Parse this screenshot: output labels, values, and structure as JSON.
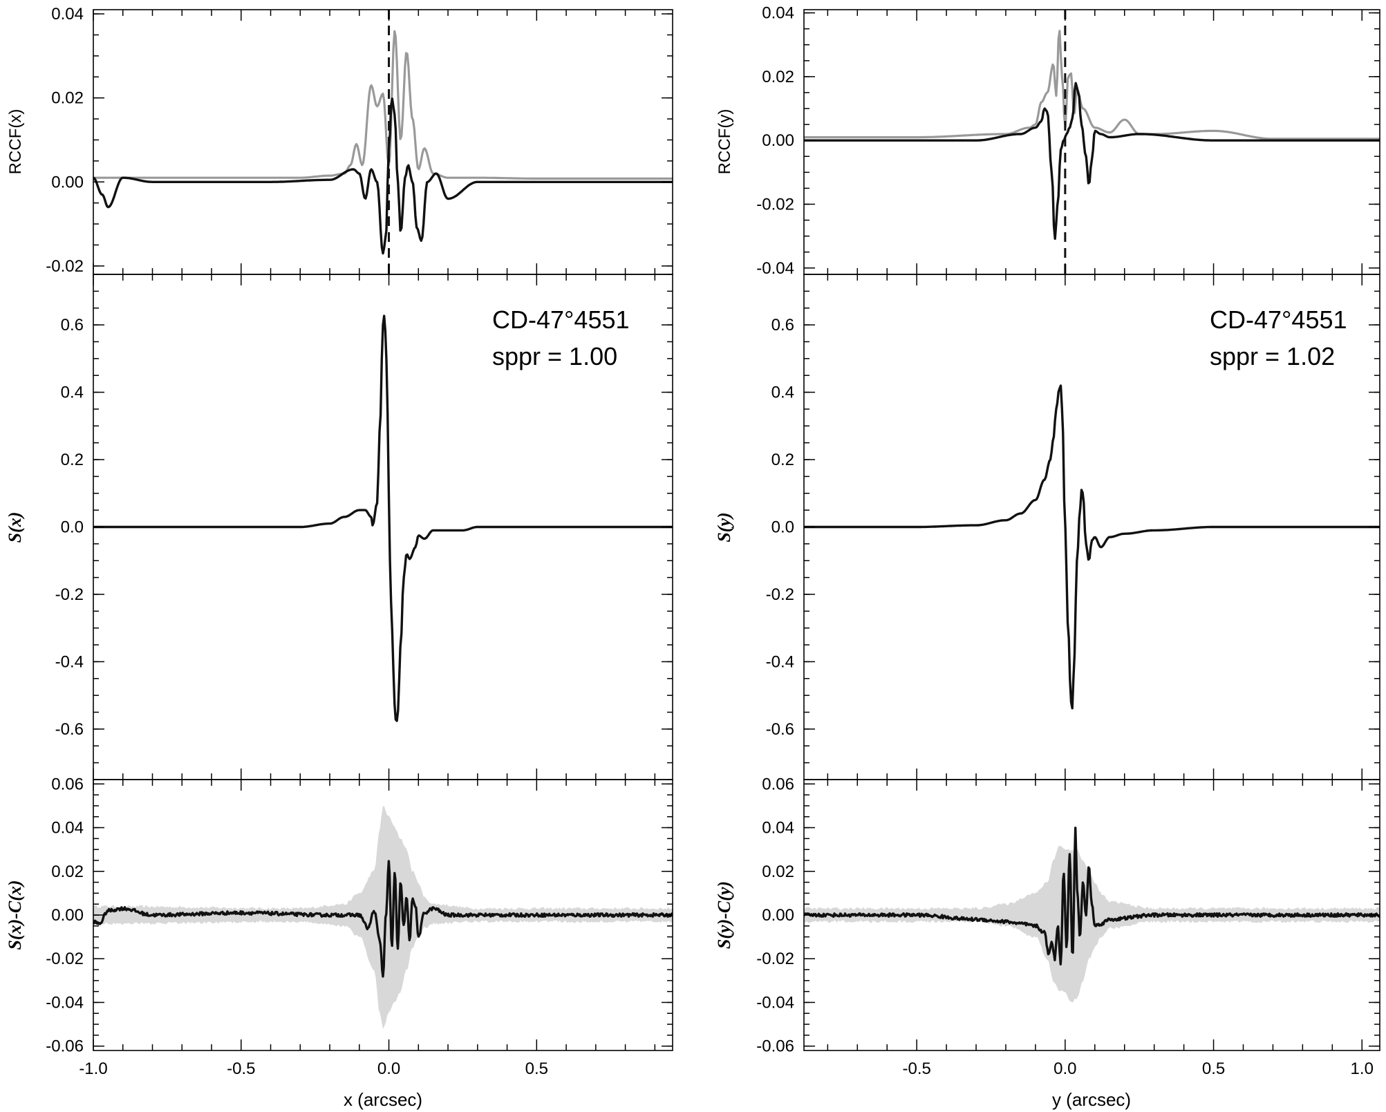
{
  "colors": {
    "black": "#111111",
    "gray_line": "#999999",
    "gray_band": "#d8d8d8"
  },
  "chart_data": [
    {
      "id": "left-top",
      "type": "line",
      "ylabel": "RCCF(x)",
      "xlim": [
        -1.0,
        0.96
      ],
      "ylim": [
        -0.022,
        0.041
      ],
      "yticks": [
        -0.02,
        0.0,
        0.02,
        0.04
      ],
      "ytick_labels": [
        "-0.02",
        "0.00",
        "0.02",
        "0.04"
      ],
      "vline_x": 0.0,
      "series": [
        {
          "color": "gray",
          "x": [
            -1.0,
            -0.3,
            -0.2,
            -0.15,
            -0.13,
            -0.11,
            -0.09,
            -0.06,
            -0.04,
            -0.02,
            0.0,
            0.02,
            0.04,
            0.06,
            0.08,
            0.1,
            0.12,
            0.15,
            0.2,
            0.3,
            0.5,
            0.7,
            0.96
          ],
          "y": [
            0.001,
            0.001,
            0.0015,
            0.002,
            0.004,
            0.009,
            0.004,
            0.023,
            0.018,
            0.021,
            0.004,
            0.036,
            0.01,
            0.031,
            0.015,
            0.003,
            0.008,
            0.002,
            0.001,
            0.001,
            0.0008,
            0.0008,
            0.0008
          ]
        },
        {
          "color": "black",
          "x": [
            -1.0,
            -0.97,
            -0.95,
            -0.9,
            -0.8,
            -0.6,
            -0.4,
            -0.2,
            -0.12,
            -0.1,
            -0.08,
            -0.06,
            -0.04,
            -0.02,
            -0.01,
            0.0,
            0.01,
            0.02,
            0.03,
            0.04,
            0.055,
            0.065,
            0.08,
            0.095,
            0.11,
            0.13,
            0.16,
            0.2,
            0.3,
            0.5,
            0.7,
            0.96
          ],
          "y": [
            0.001,
            -0.003,
            -0.006,
            0.001,
            0.0,
            0.0,
            0.0,
            0.0005,
            0.003,
            0.002,
            -0.004,
            0.003,
            0.0,
            -0.017,
            -0.013,
            0.008,
            0.02,
            0.016,
            0.0,
            -0.012,
            0.001,
            0.004,
            0.0,
            -0.011,
            -0.014,
            0.0,
            0.002,
            -0.004,
            0.0,
            0.0,
            0.0,
            0.0
          ]
        }
      ]
    },
    {
      "id": "left-mid",
      "type": "line",
      "ylabel": "S(x)",
      "xlim": [
        -1.0,
        0.96
      ],
      "ylim": [
        -0.75,
        0.75
      ],
      "yticks": [
        -0.6,
        -0.4,
        -0.2,
        0.0,
        0.2,
        0.4,
        0.6
      ],
      "ytick_labels": [
        "-0.6",
        "-0.4",
        "-0.2",
        "0.0",
        "0.2",
        "0.4",
        "0.6"
      ],
      "annotation": [
        "CD-47°4551",
        "sppr = 1.00"
      ],
      "series": [
        {
          "color": "black",
          "x": [
            -1.0,
            -0.5,
            -0.3,
            -0.2,
            -0.15,
            -0.1,
            -0.08,
            -0.06,
            -0.055,
            -0.04,
            -0.03,
            -0.02,
            -0.015,
            -0.01,
            -0.005,
            0.0,
            0.005,
            0.01,
            0.02,
            0.025,
            0.03,
            0.04,
            0.05,
            0.06,
            0.07,
            0.09,
            0.1,
            0.12,
            0.15,
            0.2,
            0.25,
            0.3,
            0.5,
            0.96
          ],
          "y": [
            0.0,
            0.0,
            0.0,
            0.01,
            0.03,
            0.05,
            0.05,
            0.03,
            0.005,
            0.07,
            0.3,
            0.6,
            0.63,
            0.55,
            0.35,
            0.1,
            -0.15,
            -0.3,
            -0.53,
            -0.59,
            -0.55,
            -0.35,
            -0.15,
            -0.08,
            -0.095,
            -0.06,
            -0.025,
            -0.035,
            -0.01,
            -0.01,
            -0.01,
            0.0,
            0.0,
            0.0
          ]
        }
      ]
    },
    {
      "id": "left-bot",
      "type": "line",
      "ylabel": "S(x)-C(x)",
      "xlabel": "x (arcsec)",
      "xlim": [
        -1.0,
        0.96
      ],
      "ylim": [
        -0.062,
        0.062
      ],
      "yticks": [
        -0.06,
        -0.04,
        -0.02,
        0.0,
        0.02,
        0.04,
        0.06
      ],
      "ytick_labels": [
        "-0.06",
        "-0.04",
        "-0.02",
        "0.00",
        "0.02",
        "0.04",
        "0.06"
      ],
      "xticks": [
        -1.0,
        -0.5,
        0.0,
        0.5
      ],
      "xtick_labels": [
        "-1.0",
        "-0.5",
        "0.0",
        "0.5"
      ],
      "band": {
        "x": [
          -1.0,
          -0.3,
          -0.15,
          -0.1,
          -0.05,
          -0.03,
          -0.02,
          0.0,
          0.02,
          0.04,
          0.06,
          0.08,
          0.1,
          0.12,
          0.15,
          0.3,
          0.96
        ],
        "upper": [
          0.004,
          0.003,
          0.005,
          0.01,
          0.02,
          0.04,
          0.05,
          0.045,
          0.04,
          0.035,
          0.03,
          0.02,
          0.015,
          0.008,
          0.005,
          0.003,
          0.003
        ],
        "lower": [
          -0.004,
          -0.003,
          -0.005,
          -0.01,
          -0.025,
          -0.045,
          -0.052,
          -0.045,
          -0.04,
          -0.035,
          -0.025,
          -0.015,
          -0.01,
          -0.006,
          -0.004,
          -0.003,
          -0.003
        ]
      },
      "series": [
        {
          "color": "black",
          "x": [
            -1.0,
            -0.98,
            -0.95,
            -0.9,
            -0.8,
            -0.5,
            -0.2,
            -0.1,
            -0.07,
            -0.05,
            -0.03,
            -0.02,
            -0.01,
            0.0,
            0.01,
            0.02,
            0.03,
            0.04,
            0.05,
            0.06,
            0.07,
            0.08,
            0.09,
            0.1,
            0.12,
            0.15,
            0.2,
            0.5,
            0.96
          ],
          "y": [
            -0.003,
            -0.004,
            0.002,
            0.003,
            0.0,
            0.001,
            0.0,
            0.0,
            -0.006,
            0.002,
            -0.012,
            -0.028,
            0.0,
            0.024,
            -0.015,
            0.02,
            -0.016,
            0.015,
            -0.005,
            0.008,
            -0.012,
            0.008,
            0.004,
            -0.01,
            0.001,
            0.003,
            0.0,
            0.0,
            0.0
          ]
        }
      ]
    },
    {
      "id": "right-top",
      "type": "line",
      "ylabel": "RCCF(y)",
      "xlim": [
        -0.88,
        1.06
      ],
      "ylim": [
        -0.042,
        0.041
      ],
      "yticks": [
        -0.04,
        -0.02,
        0.0,
        0.02,
        0.04
      ],
      "ytick_labels": [
        "-0.04",
        "-0.02",
        "0.00",
        "0.02",
        "0.04"
      ],
      "vline_x": 0.0,
      "series": [
        {
          "color": "gray",
          "x": [
            -0.88,
            -0.5,
            -0.2,
            -0.12,
            -0.1,
            -0.08,
            -0.06,
            -0.04,
            -0.03,
            -0.02,
            -0.01,
            0.0,
            0.01,
            0.02,
            0.03,
            0.04,
            0.06,
            0.1,
            0.15,
            0.2,
            0.25,
            0.3,
            0.5,
            0.7,
            0.9,
            1.06
          ],
          "y": [
            0.001,
            0.001,
            0.002,
            0.004,
            0.005,
            0.012,
            0.015,
            0.024,
            0.014,
            0.035,
            0.02,
            0.004,
            0.02,
            0.021,
            0.008,
            0.016,
            0.01,
            0.004,
            0.0025,
            0.0065,
            0.002,
            0.002,
            0.003,
            0.0005,
            0.0005,
            0.0005
          ]
        },
        {
          "color": "black",
          "x": [
            -0.88,
            -0.6,
            -0.3,
            -0.15,
            -0.1,
            -0.08,
            -0.07,
            -0.06,
            -0.045,
            -0.035,
            -0.025,
            -0.015,
            -0.005,
            0.005,
            0.015,
            0.025,
            0.035,
            0.045,
            0.055,
            0.07,
            0.08,
            0.09,
            0.1,
            0.12,
            0.15,
            0.25,
            0.5,
            0.8,
            1.06
          ],
          "y": [
            0.0,
            0.0,
            0.0,
            0.002,
            0.004,
            0.006,
            0.01,
            0.009,
            -0.01,
            -0.031,
            -0.02,
            -0.003,
            0.0,
            0.002,
            0.004,
            0.007,
            0.018,
            0.015,
            0.005,
            -0.005,
            -0.014,
            -0.006,
            0.003,
            0.002,
            0.001,
            0.002,
            0.0,
            0.0,
            0.0
          ]
        }
      ]
    },
    {
      "id": "right-mid",
      "type": "line",
      "ylabel": "S(y)",
      "xlim": [
        -0.88,
        1.06
      ],
      "ylim": [
        -0.75,
        0.75
      ],
      "yticks": [
        -0.6,
        -0.4,
        -0.2,
        0.0,
        0.2,
        0.4,
        0.6
      ],
      "ytick_labels": [
        "-0.6",
        "-0.4",
        "-0.2",
        "0.0",
        "0.2",
        "0.4",
        "0.6"
      ],
      "annotation": [
        "CD-47°4551",
        "sppr = 1.02"
      ],
      "series": [
        {
          "color": "black",
          "x": [
            -0.88,
            -0.5,
            -0.3,
            -0.2,
            -0.15,
            -0.1,
            -0.07,
            -0.05,
            -0.04,
            -0.03,
            -0.02,
            -0.015,
            -0.01,
            0.0,
            0.01,
            0.02,
            0.025,
            0.03,
            0.04,
            0.05,
            0.055,
            0.06,
            0.07,
            0.08,
            0.09,
            0.1,
            0.12,
            0.15,
            0.2,
            0.3,
            0.5,
            1.06
          ],
          "y": [
            0.0,
            0.0,
            0.005,
            0.02,
            0.04,
            0.08,
            0.14,
            0.2,
            0.26,
            0.35,
            0.41,
            0.42,
            0.35,
            0.0,
            -0.3,
            -0.52,
            -0.54,
            -0.4,
            -0.1,
            0.05,
            0.11,
            0.1,
            -0.05,
            -0.1,
            -0.04,
            -0.03,
            -0.06,
            -0.03,
            -0.02,
            -0.01,
            0.0,
            0.0
          ]
        }
      ]
    },
    {
      "id": "right-bot",
      "type": "line",
      "ylabel": "S(y)-C(y)",
      "xlabel": "y (arcsec)",
      "xlim": [
        -0.88,
        1.06
      ],
      "ylim": [
        -0.062,
        0.062
      ],
      "yticks": [
        -0.06,
        -0.04,
        -0.02,
        0.0,
        0.02,
        0.04,
        0.06
      ],
      "ytick_labels": [
        "-0.06",
        "-0.04",
        "-0.02",
        "0.00",
        "0.02",
        "0.04",
        "0.06"
      ],
      "xticks": [
        -0.5,
        0.0,
        0.5,
        1.0
      ],
      "xtick_labels": [
        "-0.5",
        "0.0",
        "0.5",
        "1.0"
      ],
      "band": {
        "x": [
          -0.88,
          -0.3,
          -0.2,
          -0.1,
          -0.06,
          -0.04,
          -0.02,
          0.0,
          0.02,
          0.04,
          0.06,
          0.08,
          0.1,
          0.12,
          0.15,
          0.3,
          1.06
        ],
        "upper": [
          0.003,
          0.003,
          0.005,
          0.01,
          0.015,
          0.025,
          0.032,
          0.03,
          0.03,
          0.03,
          0.025,
          0.02,
          0.015,
          0.01,
          0.006,
          0.003,
          0.003
        ],
        "lower": [
          -0.003,
          -0.003,
          -0.005,
          -0.01,
          -0.02,
          -0.03,
          -0.035,
          -0.035,
          -0.04,
          -0.038,
          -0.03,
          -0.02,
          -0.015,
          -0.01,
          -0.006,
          -0.003,
          -0.003
        ]
      },
      "series": [
        {
          "color": "black",
          "x": [
            -0.88,
            -0.7,
            -0.5,
            -0.3,
            -0.2,
            -0.15,
            -0.1,
            -0.07,
            -0.055,
            -0.045,
            -0.035,
            -0.025,
            -0.015,
            -0.005,
            0.005,
            0.015,
            0.025,
            0.035,
            0.04,
            0.05,
            0.06,
            0.07,
            0.08,
            0.09,
            0.1,
            0.12,
            0.15,
            0.3,
            0.6,
            1.06
          ],
          "y": [
            0.0,
            0.0,
            0.0,
            -0.002,
            -0.003,
            -0.004,
            -0.005,
            -0.008,
            -0.018,
            -0.012,
            -0.02,
            -0.005,
            -0.022,
            0.02,
            -0.015,
            0.028,
            -0.02,
            0.04,
            0.012,
            -0.01,
            0.015,
            0.0,
            0.022,
            0.005,
            -0.005,
            -0.004,
            -0.002,
            0.0,
            0.0,
            0.0
          ]
        }
      ]
    }
  ]
}
